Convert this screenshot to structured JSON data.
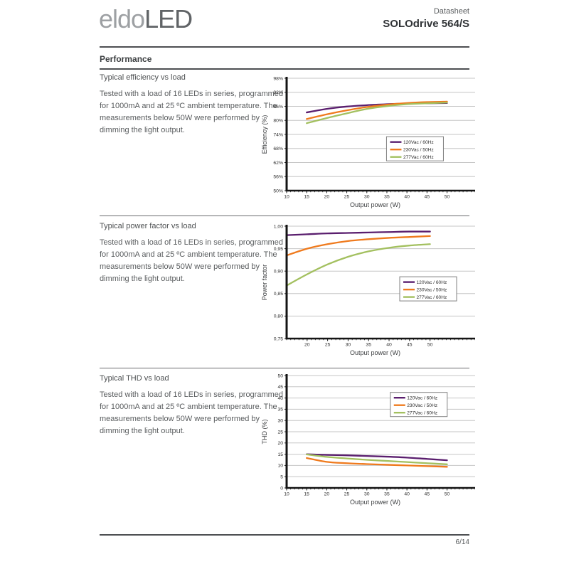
{
  "header": {
    "logo_light": "eldo",
    "logo_bold": "LED",
    "doc_type": "Datasheet",
    "product_title": "SOLOdrive 564/S"
  },
  "performance_heading": "Performance",
  "sections": [
    {
      "title": "Typical efficiency vs load",
      "description": "Tested with a load of 16 LEDs in series, programmed for 1000mA and at 25 ºC ambient temperature. The measurements below 50W were performed by dimming the light output."
    },
    {
      "title": "Typical power factor vs load",
      "description": "Tested with a load of 16 LEDs in series, programmed for 1000mA and at 25 ºC ambient temperature. The measurements below 50W were performed by dimming the light output."
    },
    {
      "title": "Typical THD vs load",
      "description": "Tested with a load of 16 LEDs in series, programmed for 1000mA and at 25 ºC ambient temperature. The measurements below 50W were performed by dimming the light output."
    }
  ],
  "footer": {
    "page_number": "6/14"
  },
  "colors": {
    "series_120vac": "#5a1e6e",
    "series_230vac": "#ef7a1d",
    "series_277vac": "#a3c05f",
    "grid": "#c6c6c6",
    "axis": "#141414"
  },
  "chart_data": [
    {
      "type": "line",
      "title": "Typical efficiency vs load",
      "xlabel": "Output power (W)",
      "ylabel": "Efficiency (%)",
      "xlim": [
        10,
        57
      ],
      "ylim": [
        50,
        98
      ],
      "xticks": [
        10,
        15,
        20,
        25,
        30,
        35,
        40,
        45,
        50
      ],
      "ytick_step": 6,
      "ytick_format": "percent",
      "minor_x_step": 1,
      "grid": "horizontal",
      "legend_position": "middle-right",
      "legend_fx": 0.53,
      "legend_fy": 0.52,
      "x": [
        15,
        20,
        25,
        30,
        35,
        40,
        45,
        50
      ],
      "series": [
        {
          "name": "120Vac / 60Hz",
          "color": "#5a1e6e",
          "values": [
            83.4,
            84.9,
            85.9,
            86.5,
            86.9,
            87.2,
            87.3,
            87.4
          ]
        },
        {
          "name": "230Vac / 50Hz",
          "color": "#ef7a1d",
          "values": [
            80.6,
            82.6,
            84.3,
            85.7,
            86.7,
            87.4,
            87.8,
            88.0
          ]
        },
        {
          "name": "277Vac / 60Hz",
          "color": "#a3c05f",
          "values": [
            78.8,
            81.0,
            83.0,
            84.9,
            86.1,
            86.9,
            87.3,
            87.6
          ]
        }
      ]
    },
    {
      "type": "line",
      "title": "Typical power factor vs load",
      "xlabel": "Output power (W)",
      "ylabel": "Power factor",
      "xlim": [
        15,
        61
      ],
      "ylim": [
        0.75,
        1.0
      ],
      "xticks": [
        20,
        25,
        30,
        35,
        40,
        45,
        50
      ],
      "ytick_step": 0.05,
      "ytick_format": "comma2",
      "minor_x_step": 1,
      "grid": "horizontal",
      "legend_position": "middle-right",
      "legend_fx": 0.6,
      "legend_fy": 0.45,
      "x": [
        15,
        20,
        25,
        30,
        35,
        40,
        45,
        50
      ],
      "series": [
        {
          "name": "120Vac / 60Hz",
          "color": "#5a1e6e",
          "values": [
            0.98,
            0.982,
            0.984,
            0.985,
            0.986,
            0.987,
            0.988,
            0.988
          ]
        },
        {
          "name": "230Vac / 50Hz",
          "color": "#ef7a1d",
          "values": [
            0.935,
            0.95,
            0.96,
            0.967,
            0.971,
            0.974,
            0.976,
            0.978
          ]
        },
        {
          "name": "277Vac / 60Hz",
          "color": "#a3c05f",
          "values": [
            0.868,
            0.893,
            0.915,
            0.932,
            0.944,
            0.952,
            0.957,
            0.96
          ]
        }
      ]
    },
    {
      "type": "line",
      "title": "Typical THD vs load",
      "xlabel": "Output power (W)",
      "ylabel": "THD (%)",
      "xlim": [
        10,
        57
      ],
      "ylim": [
        0,
        50
      ],
      "xticks": [
        10,
        15,
        20,
        25,
        30,
        35,
        40,
        45,
        50
      ],
      "ytick_step": 5,
      "ytick_format": "int",
      "minor_x_step": 1,
      "grid": "horizontal",
      "legend_position": "top-right",
      "legend_fx": 0.55,
      "legend_fy": 0.15,
      "x": [
        15,
        20,
        25,
        30,
        35,
        40,
        45,
        50
      ],
      "series": [
        {
          "name": "120Vac / 60Hz",
          "color": "#5a1e6e",
          "values": [
            15.0,
            14.7,
            14.5,
            14.2,
            13.9,
            13.5,
            12.9,
            12.3
          ]
        },
        {
          "name": "230Vac / 50Hz",
          "color": "#ef7a1d",
          "values": [
            13.3,
            11.6,
            11.0,
            10.6,
            10.3,
            10.0,
            9.7,
            9.4
          ]
        },
        {
          "name": "277Vac / 60Hz",
          "color": "#a3c05f",
          "values": [
            14.9,
            13.8,
            13.1,
            12.5,
            12.0,
            11.5,
            11.0,
            10.5
          ]
        }
      ]
    }
  ]
}
